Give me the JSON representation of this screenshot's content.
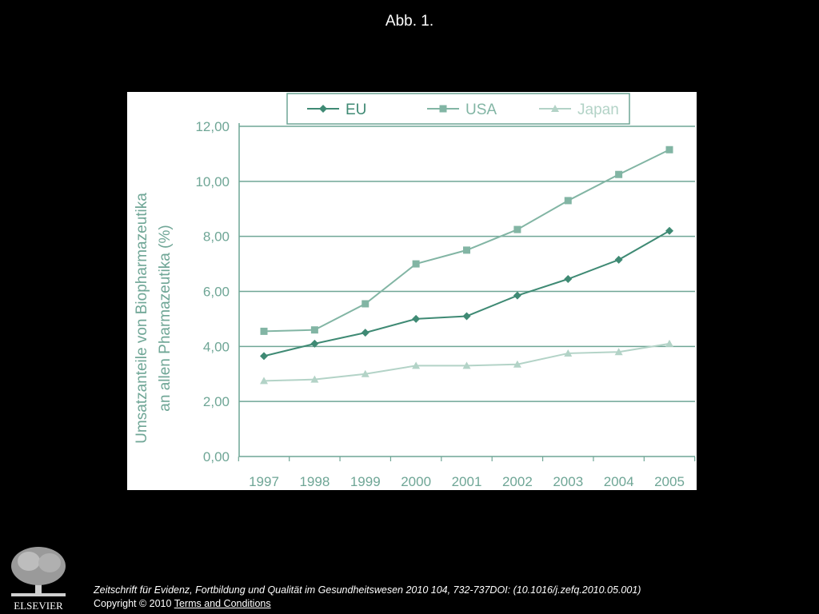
{
  "slide": {
    "title": "Abb. 1."
  },
  "footer": {
    "citation": "Zeitschrift für Evidenz, Fortbildung und Qualität im Gesundheitswesen 2010 104, 732-737DOI: (10.1016/j.zefq.2010.05.001)",
    "copyright": "Copyright © 2010 ",
    "terms_link": " Terms and Conditions",
    "logo_text": "ELSEVIER"
  },
  "colors": {
    "eu": "#3f8a74",
    "usa": "#82b5a4",
    "japan": "#b3d3c7",
    "axis_text": "#6fa696",
    "grid": "#6fa696"
  },
  "chart_data": {
    "type": "line",
    "title": "",
    "xlabel": "",
    "ylabel": "Umsatzanteile von Biopharmazeutika an allen Pharmazeutika (%)",
    "ylabel_lines": [
      "Umsatzanteile von Biopharmazeutika",
      "an allen Pharmazeutika (%)"
    ],
    "x": [
      "1997",
      "1998",
      "1999",
      "2000",
      "2001",
      "2002",
      "2003",
      "2004",
      "2005"
    ],
    "ylim": [
      0,
      12
    ],
    "yticks": [
      0,
      2,
      4,
      6,
      8,
      10,
      12
    ],
    "ytick_labels": [
      "0,00",
      "2,00",
      "4,00",
      "6,00",
      "8,00",
      "10,00",
      "12,00"
    ],
    "grid": true,
    "legend_position": "top",
    "series": [
      {
        "name": "EU",
        "marker": "diamond",
        "values": [
          3.65,
          4.1,
          4.5,
          5.0,
          5.1,
          5.85,
          6.45,
          7.15,
          8.2
        ]
      },
      {
        "name": "USA",
        "marker": "square",
        "values": [
          4.55,
          4.6,
          5.55,
          7.0,
          7.5,
          8.25,
          9.3,
          10.25,
          11.15
        ]
      },
      {
        "name": "Japan",
        "marker": "triangle",
        "values": [
          2.75,
          2.8,
          3.0,
          3.3,
          3.3,
          3.35,
          3.75,
          3.8,
          4.1
        ]
      }
    ]
  }
}
